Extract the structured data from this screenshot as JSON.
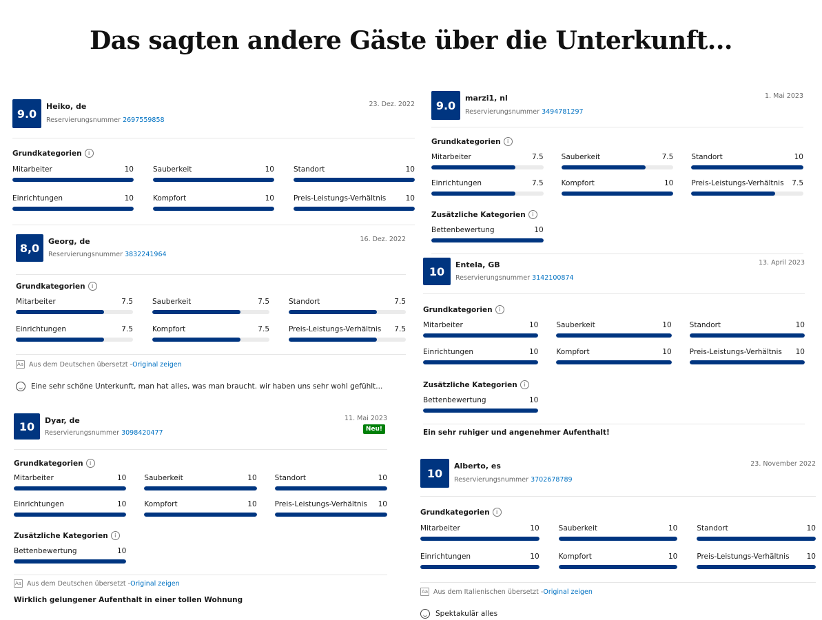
{
  "headline": "Das sagten andere Gäste über die Unterkunft...",
  "labels": {
    "grundkategorien": "Grundkategorien",
    "zusaetzliche": "Zusätzliche Kategorien",
    "resv_prefix": "Reservierungsnummer",
    "original_zeigen": "Original zeigen",
    "new_badge": "Neu!",
    "info_icon": "i"
  },
  "colors": {
    "brand": "#003580",
    "link": "#0071c2",
    "new_badge": "#008009"
  },
  "reviews": [
    {
      "id": "heiko",
      "score": "9.0",
      "guest": "Heiko, de",
      "resv_num": "2697559858",
      "date": "23. Dez. 2022",
      "categories": [
        {
          "name": "Mitarbeiter",
          "value": "10"
        },
        {
          "name": "Sauberkeit",
          "value": "10"
        },
        {
          "name": "Standort",
          "value": "10"
        },
        {
          "name": "Einrichtungen",
          "value": "10"
        },
        {
          "name": "Kompfort",
          "value": "10"
        },
        {
          "name": "Preis-Leistungs-Verhältnis",
          "value": "10"
        }
      ]
    },
    {
      "id": "georg",
      "score": "8,0",
      "guest": "Georg, de",
      "resv_num": "3832241964",
      "date": "16. Dez. 2022",
      "categories": [
        {
          "name": "Mitarbeiter",
          "value": "7.5"
        },
        {
          "name": "Sauberkeit",
          "value": "7.5"
        },
        {
          "name": "Standort",
          "value": "7.5"
        },
        {
          "name": "Einrichtungen",
          "value": "7.5"
        },
        {
          "name": "Kompfort",
          "value": "7.5"
        },
        {
          "name": "Preis-Leistungs-Verhältnis",
          "value": "7.5"
        }
      ],
      "translated_prefix": "Aus dem Deutschen übersetzt - ",
      "comment": "Eine sehr schöne Unterkunft, man hat alles, was man braucht. wir haben uns sehr wohl gefühlt..."
    },
    {
      "id": "dyar",
      "score": "10",
      "guest": "Dyar, de",
      "resv_num": "3098420477",
      "date": "11. Mai 2023",
      "is_new": true,
      "categories": [
        {
          "name": "Mitarbeiter",
          "value": "10"
        },
        {
          "name": "Sauberkeit",
          "value": "10"
        },
        {
          "name": "Standort",
          "value": "10"
        },
        {
          "name": "Einrichtungen",
          "value": "10"
        },
        {
          "name": "Kompfort",
          "value": "10"
        },
        {
          "name": "Preis-Leistungs-Verhältnis",
          "value": "10"
        }
      ],
      "extra_categories": [
        {
          "name": "Bettenbewertung",
          "value": "10"
        }
      ],
      "translated_prefix": "Aus dem Deutschen übersetzt - ",
      "comment": "Wirklich gelungener Aufenthalt in einer tollen Wohnung"
    },
    {
      "id": "marzi",
      "score": "9.0",
      "guest": "marzi1, nl",
      "resv_num": "3494781297",
      "date": "1. Mai 2023",
      "categories": [
        {
          "name": "Mitarbeiter",
          "value": "7.5"
        },
        {
          "name": "Sauberkeit",
          "value": "7.5"
        },
        {
          "name": "Standort",
          "value": "10"
        },
        {
          "name": "Einrichtungen",
          "value": "7.5"
        },
        {
          "name": "Kompfort",
          "value": "10"
        },
        {
          "name": "Preis-Leistungs-Verhältnis",
          "value": "7.5"
        }
      ],
      "extra_categories": [
        {
          "name": "Bettenbewertung",
          "value": "10"
        }
      ]
    },
    {
      "id": "entela",
      "score": "10",
      "guest": "Entela, GB",
      "resv_num": "3142100874",
      "date": "13. April 2023",
      "categories": [
        {
          "name": "Mitarbeiter",
          "value": "10"
        },
        {
          "name": "Sauberkeit",
          "value": "10"
        },
        {
          "name": "Standort",
          "value": "10"
        },
        {
          "name": "Einrichtungen",
          "value": "10"
        },
        {
          "name": "Kompfort",
          "value": "10"
        },
        {
          "name": "Preis-Leistungs-Verhältnis",
          "value": "10"
        }
      ],
      "extra_categories": [
        {
          "name": "Bettenbewertung",
          "value": "10"
        }
      ],
      "comment": "Ein sehr ruhiger und angenehmer Aufenthalt!"
    },
    {
      "id": "alberto",
      "score": "10",
      "guest": "Alberto, es",
      "resv_num": "3702678789",
      "date": "23. November 2022",
      "categories": [
        {
          "name": "Mitarbeiter",
          "value": "10"
        },
        {
          "name": "Sauberkeit",
          "value": "10"
        },
        {
          "name": "Standort",
          "value": "10"
        },
        {
          "name": "Einrichtungen",
          "value": "10"
        },
        {
          "name": "Kompfort",
          "value": "10"
        },
        {
          "name": "Preis-Leistungs-Verhältnis",
          "value": "10"
        }
      ],
      "translated_prefix": "Aus dem Italienischen übersetzt - ",
      "comment": "Spektakulär alles"
    }
  ]
}
